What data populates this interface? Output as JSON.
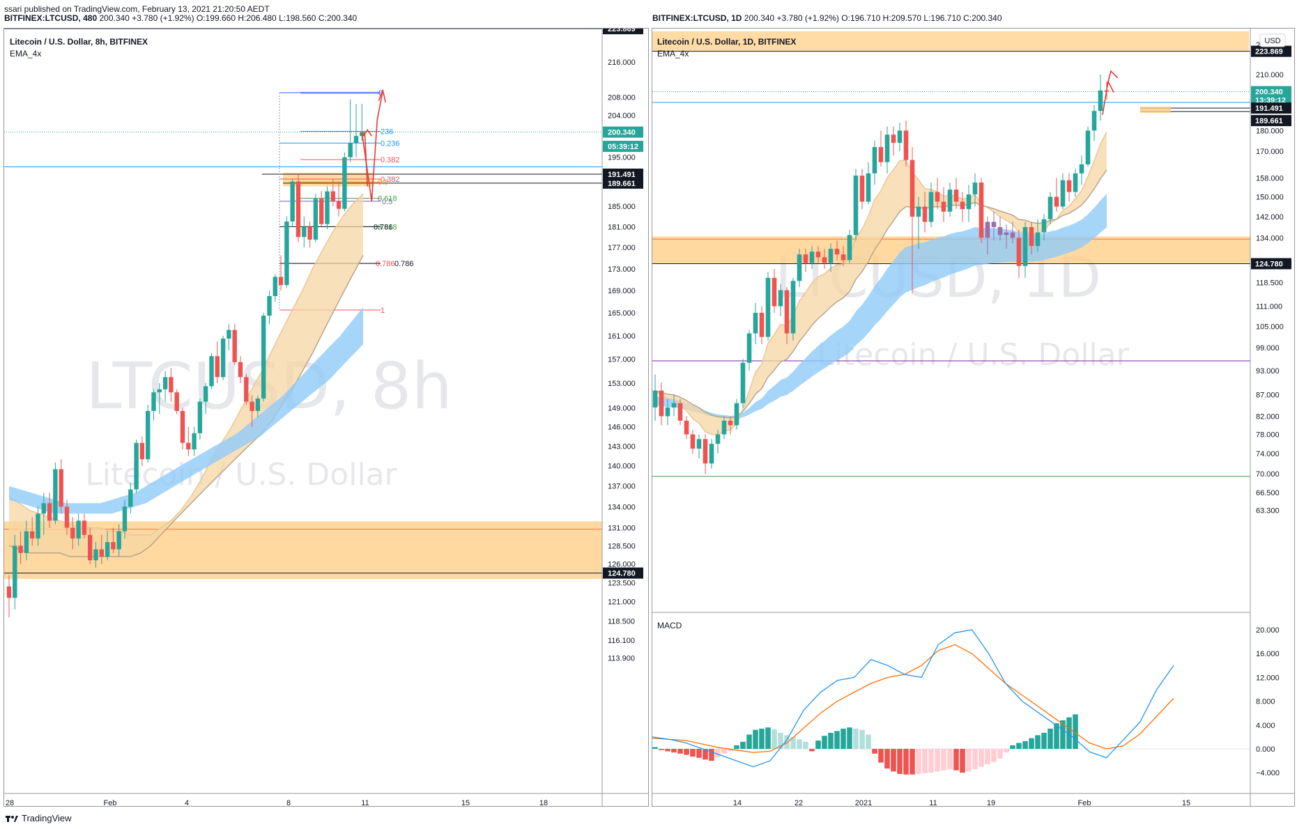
{
  "publish_line": "ssari published on TradingView.com, February 13, 2021 21:20:50 AEDT",
  "footer": {
    "brand": "TradingView"
  },
  "colors": {
    "up": "#26a69a",
    "down": "#ef5350",
    "zone": "#ffcc80",
    "cloud": "#90caf9",
    "ema_band": "#f5d5a4",
    "macd": "#2196f3",
    "signal": "#ff6d00",
    "hist_up_strong": "#26a69a",
    "hist_up_weak": "#b2dfdb",
    "hist_down_strong": "#ef5350",
    "hist_down_weak": "#ffcdd2"
  },
  "left": {
    "quote": {
      "symbol": "BITFINEX:LTCUSD, 480",
      "last": "200.340",
      "change": "+3.780 (+1.92%)",
      "o": "O:199.660",
      "h": "H:206.480",
      "l": "L:198.560",
      "c": "C:200.340"
    },
    "legend_title": "Litecoin / U.S. Dollar, 8h, BITFINEX",
    "indicator": "EMA_4x",
    "watermark_symbol": "LTCUSD, 8h",
    "watermark_name": "Litecoin / U.S. Dollar",
    "price_ticks": [
      "216.000",
      "208.000",
      "204.000",
      "195.000",
      "185.000",
      "181.000",
      "177.000",
      "173.000",
      "169.000",
      "165.000",
      "161.000",
      "157.000",
      "153.000",
      "149.000",
      "146.000",
      "143.000",
      "140.000",
      "137.000",
      "134.000",
      "131.000",
      "128.500",
      "126.000",
      "123.500",
      "121.000",
      "118.500",
      "116.100",
      "113.900"
    ],
    "time_ticks": [
      "28",
      "Feb",
      "4",
      "8",
      "11",
      "15",
      "18"
    ],
    "price_labels": [
      {
        "text": "223.869",
        "kind": "level"
      },
      {
        "text": "200.340",
        "kind": "last"
      },
      {
        "text": "05:39:12",
        "kind": "countdown"
      },
      {
        "text": "191.491",
        "kind": "level"
      },
      {
        "text": "189.661",
        "kind": "level"
      },
      {
        "text": "124.780",
        "kind": "level"
      }
    ],
    "fib_labels": [
      "0",
      "236",
      "0.236",
      "0.382",
      "0.382",
      "0.5",
      "0.5",
      "0.618",
      "0.618",
      "0.786",
      "0.786",
      "0.786",
      "1"
    ]
  },
  "right": {
    "quote": {
      "symbol": "BITFINEX:LTCUSD, 1D",
      "last": "200.340",
      "change": "+3.780 (+1.92%)",
      "o": "O:196.710",
      "h": "H:209.570",
      "l": "L:196.710",
      "c": "C:200.340"
    },
    "legend_title": "Litecoin / U.S. Dollar, 1D, BITFINEX",
    "indicator": "EMA_4x",
    "currency": "USD",
    "watermark_symbol": "LTCUSD, 1D",
    "watermark_name": "Litecoin / U.S. Dollar",
    "price_ticks": [
      "230.000",
      "210.000",
      "190.000",
      "180.000",
      "170.000",
      "158.000",
      "150.000",
      "142.000",
      "134.000",
      "118.500",
      "111.000",
      "105.000",
      "99.000",
      "93.000",
      "87.000",
      "82.000",
      "78.000",
      "74.000",
      "70.000",
      "66.500",
      "63.300"
    ],
    "time_ticks": [
      "14",
      "22",
      "2021",
      "11",
      "19",
      "Feb",
      "15"
    ],
    "price_labels": [
      {
        "text": "223.869",
        "kind": "level"
      },
      {
        "text": "200.340",
        "kind": "last"
      },
      {
        "text": "13:39:12",
        "kind": "countdown"
      },
      {
        "text": "191.491",
        "kind": "level"
      },
      {
        "text": "189.661",
        "kind": "level"
      },
      {
        "text": "124.780",
        "kind": "level"
      }
    ],
    "macd_title": "MACD",
    "macd_ticks": [
      "20.000",
      "16.000",
      "12.000",
      "8.000",
      "4.000",
      "0.000",
      "−4.000"
    ]
  },
  "chart_data": [
    {
      "type": "candlestick",
      "title": "Litecoin / U.S. Dollar, 8h, BITFINEX",
      "x_ticks": [
        "28",
        "Feb",
        "4",
        "8",
        "11",
        "15",
        "18"
      ],
      "ylim": [
        113.9,
        223.9
      ],
      "y_scale": "log",
      "levels": [
        223.869,
        200.34,
        191.491,
        189.661,
        124.78
      ],
      "support_zone": [
        124.0,
        131.9
      ],
      "resistance_zone": [
        189.661,
        191.491
      ],
      "ohlc": [
        [
          123.0,
          124.5,
          119.0,
          121.5
        ],
        [
          121.5,
          130.0,
          120.0,
          128.5
        ],
        [
          128.5,
          130.5,
          126.0,
          127.5
        ],
        [
          127.5,
          132.0,
          126.5,
          130.5
        ],
        [
          130.5,
          132.5,
          128.5,
          129.5
        ],
        [
          129.5,
          134.0,
          128.5,
          133.0
        ],
        [
          133.0,
          136.0,
          130.0,
          134.5
        ],
        [
          134.5,
          136.0,
          131.0,
          132.0
        ],
        [
          132.0,
          140.5,
          131.5,
          139.5
        ],
        [
          139.5,
          141.0,
          133.0,
          134.0
        ],
        [
          134.0,
          135.0,
          130.0,
          131.0
        ],
        [
          131.0,
          132.5,
          128.0,
          129.5
        ],
        [
          129.5,
          133.0,
          128.5,
          132.0
        ],
        [
          132.0,
          133.0,
          129.5,
          130.0
        ],
        [
          130.0,
          131.0,
          126.0,
          126.5
        ],
        [
          126.5,
          129.0,
          125.5,
          128.0
        ],
        [
          128.0,
          130.0,
          126.0,
          127.0
        ],
        [
          127.0,
          130.5,
          126.5,
          129.0
        ],
        [
          129.0,
          131.0,
          127.5,
          128.0
        ],
        [
          128.0,
          131.5,
          127.0,
          130.5
        ],
        [
          130.5,
          135.0,
          129.5,
          134.0
        ],
        [
          134.0,
          137.5,
          133.0,
          136.5
        ],
        [
          136.5,
          144.0,
          136.0,
          143.5
        ],
        [
          143.5,
          144.5,
          140.0,
          141.0
        ],
        [
          141.0,
          149.5,
          140.5,
          148.5
        ],
        [
          148.5,
          152.0,
          147.0,
          151.5
        ],
        [
          151.5,
          153.0,
          148.0,
          152.0
        ],
        [
          152.0,
          155.0,
          150.0,
          154.0
        ],
        [
          154.0,
          155.5,
          150.0,
          151.5
        ],
        [
          151.5,
          152.0,
          148.0,
          148.5
        ],
        [
          148.5,
          149.0,
          142.5,
          143.5
        ],
        [
          143.5,
          146.0,
          141.5,
          142.5
        ],
        [
          142.5,
          146.0,
          141.5,
          145.0
        ],
        [
          145.0,
          150.5,
          144.0,
          150.0
        ],
        [
          150.0,
          153.0,
          148.0,
          152.5
        ],
        [
          152.5,
          158.0,
          152.0,
          157.5
        ],
        [
          157.5,
          160.0,
          153.0,
          154.0
        ],
        [
          154.0,
          161.0,
          153.5,
          160.5
        ],
        [
          160.5,
          163.0,
          158.5,
          162.0
        ],
        [
          162.0,
          163.0,
          156.0,
          156.5
        ],
        [
          156.5,
          157.5,
          153.0,
          154.0
        ],
        [
          154.0,
          154.5,
          149.5,
          150.0
        ],
        [
          150.0,
          151.0,
          146.0,
          148.5
        ],
        [
          148.5,
          151.0,
          147.5,
          150.5
        ],
        [
          150.5,
          165.0,
          150.0,
          164.5
        ],
        [
          164.5,
          169.0,
          163.0,
          168.0
        ],
        [
          168.0,
          172.0,
          167.0,
          171.5
        ],
        [
          171.5,
          175.5,
          169.0,
          170.0
        ],
        [
          170.0,
          183.0,
          169.5,
          182.0
        ],
        [
          182.0,
          190.5,
          181.0,
          190.0
        ],
        [
          190.0,
          191.5,
          178.0,
          179.0
        ],
        [
          179.0,
          183.0,
          177.0,
          181.0
        ],
        [
          181.0,
          182.0,
          177.0,
          178.5
        ],
        [
          178.5,
          187.5,
          178.0,
          186.5
        ],
        [
          186.5,
          188.0,
          181.0,
          181.5
        ],
        [
          181.5,
          189.0,
          180.5,
          188.0
        ],
        [
          188.0,
          190.5,
          185.0,
          186.0
        ],
        [
          186.0,
          190.0,
          183.0,
          184.5
        ],
        [
          184.5,
          196.0,
          184.0,
          195.0
        ],
        [
          195.0,
          207.5,
          194.0,
          198.0
        ],
        [
          198.0,
          206.5,
          195.0,
          199.5
        ],
        [
          199.5,
          206.5,
          198.5,
          200.34
        ]
      ],
      "ema_upper": [
        135.5,
        134.5,
        133.5,
        133.0,
        132.5,
        132.0,
        131.5,
        131.0,
        131.0,
        131.0,
        130.5,
        130.5,
        130.0,
        130.0,
        130.0,
        131.0,
        132.0,
        133.5,
        135.5,
        138.0,
        141.0,
        143.5,
        146.0,
        149.0,
        152.0,
        155.0,
        158.5,
        162.0,
        165.5,
        169.0,
        173.0,
        176.5,
        180.0,
        183.0,
        185.5,
        187.5
      ],
      "ema_lower": [
        128.5,
        128.0,
        127.5,
        127.5,
        127.5,
        127.5,
        127.0,
        127.0,
        127.0,
        127.0,
        127.0,
        127.0,
        127.0,
        127.5,
        128.5,
        130.0,
        131.5,
        133.0,
        134.5,
        136.0,
        137.5,
        139.0,
        140.5,
        142.0,
        143.5,
        145.0,
        147.0,
        149.5,
        152.0,
        155.0,
        158.0,
        161.5,
        165.0,
        168.5,
        172.0,
        175.5
      ],
      "cloud_upper": [
        137.0,
        136.5,
        136.0,
        135.5,
        135.0,
        134.5,
        134.5,
        134.5,
        134.5,
        135.0,
        135.5,
        136.0,
        137.0,
        138.0,
        139.0,
        140.0,
        141.0,
        142.0,
        143.0,
        144.0,
        145.0,
        146.5,
        148.0,
        149.5,
        151.0,
        153.0,
        155.0,
        157.0,
        159.0,
        161.0,
        163.5,
        166.0
      ],
      "cloud_lower": [
        135.0,
        134.5,
        134.0,
        133.5,
        133.0,
        133.0,
        133.0,
        133.0,
        133.0,
        133.0,
        133.5,
        134.0,
        134.5,
        135.5,
        136.5,
        137.5,
        138.5,
        139.5,
        140.5,
        141.5,
        142.5,
        143.5,
        144.5,
        146.0,
        147.5,
        149.0,
        150.5,
        152.0,
        153.5,
        155.5,
        157.5,
        159.5
      ]
    },
    {
      "type": "candlestick",
      "title": "Litecoin / U.S. Dollar, 1D, BITFINEX",
      "x_ticks": [
        "14",
        "22",
        "2021",
        "11",
        "19",
        "Feb",
        "15"
      ],
      "ylim": [
        63.3,
        230.0
      ],
      "y_scale": "log",
      "levels": [
        223.869,
        200.34,
        191.491,
        189.661,
        124.78,
        95.5,
        69.5
      ],
      "support_zone": [
        124.78,
        134.0
      ],
      "ohlc": [
        [
          84,
          92,
          81,
          88
        ],
        [
          88,
          90,
          80,
          82
        ],
        [
          82,
          86,
          80,
          84
        ],
        [
          84,
          87,
          82,
          85
        ],
        [
          85,
          86,
          80,
          81
        ],
        [
          81,
          82,
          77,
          78
        ],
        [
          78,
          79,
          74,
          75
        ],
        [
          75,
          78,
          73,
          77
        ],
        [
          77,
          78,
          70,
          72
        ],
        [
          72,
          77,
          71,
          76
        ],
        [
          76,
          79,
          74,
          78
        ],
        [
          78,
          82,
          77,
          81
        ],
        [
          81,
          82,
          78,
          80
        ],
        [
          80,
          86,
          79,
          85
        ],
        [
          85,
          96,
          84,
          95
        ],
        [
          95,
          104,
          93,
          103
        ],
        [
          103,
          112,
          100,
          109
        ],
        [
          109,
          111,
          100,
          102
        ],
        [
          102,
          122,
          101,
          120
        ],
        [
          120,
          123,
          109,
          111
        ],
        [
          111,
          118,
          108,
          116
        ],
        [
          116,
          117,
          100,
          103
        ],
        [
          103,
          120,
          101,
          119
        ],
        [
          119,
          130,
          117,
          128
        ],
        [
          128,
          130,
          122,
          125
        ],
        [
          125,
          131,
          123,
          129
        ],
        [
          129,
          131,
          125,
          127
        ],
        [
          127,
          130,
          123,
          125
        ],
        [
          125,
          132,
          122,
          130
        ],
        [
          130,
          133,
          126,
          128
        ],
        [
          128,
          131,
          124,
          126
        ],
        [
          126,
          137,
          125,
          135
        ],
        [
          135,
          162,
          133,
          159
        ],
        [
          159,
          162,
          145,
          148
        ],
        [
          148,
          165,
          147,
          160
        ],
        [
          160,
          175,
          155,
          172
        ],
        [
          172,
          180,
          163,
          165
        ],
        [
          165,
          182,
          160,
          178
        ],
        [
          178,
          182,
          168,
          174
        ],
        [
          174,
          184,
          170,
          180
        ],
        [
          180,
          185,
          163,
          166
        ],
        [
          166,
          172,
          115,
          142
        ],
        [
          142,
          150,
          130,
          146
        ],
        [
          146,
          152,
          136,
          140
        ],
        [
          140,
          156,
          138,
          152
        ],
        [
          152,
          158,
          145,
          148
        ],
        [
          148,
          154,
          140,
          144
        ],
        [
          144,
          156,
          142,
          153
        ],
        [
          153,
          158,
          145,
          148
        ],
        [
          148,
          152,
          140,
          145
        ],
        [
          145,
          155,
          140,
          151
        ],
        [
          151,
          160,
          146,
          156
        ],
        [
          156,
          158,
          132,
          134
        ],
        [
          134,
          142,
          128,
          140
        ],
        [
          140,
          144,
          133,
          138
        ],
        [
          138,
          142,
          133,
          135
        ],
        [
          135,
          139,
          130,
          136
        ],
        [
          136,
          140,
          132,
          134
        ],
        [
          134,
          137,
          120,
          124
        ],
        [
          124,
          140,
          120,
          138
        ],
        [
          138,
          140,
          128,
          131
        ],
        [
          131,
          141,
          129,
          136
        ],
        [
          136,
          143,
          133,
          141
        ],
        [
          141,
          152,
          139,
          150
        ],
        [
          150,
          158,
          144,
          146
        ],
        [
          146,
          160,
          145,
          157
        ],
        [
          157,
          160,
          148,
          152
        ],
        [
          152,
          162,
          150,
          160
        ],
        [
          160,
          168,
          155,
          164
        ],
        [
          164,
          182,
          163,
          180
        ],
        [
          180,
          193,
          175,
          190
        ],
        [
          190,
          210,
          185,
          201
        ],
        [
          201,
          206,
          196,
          200.34
        ]
      ],
      "macd": [
        2.0,
        1.6,
        1.0,
        0.0,
        -1.0,
        -2.0,
        -3.0,
        -2.0,
        1.5,
        6.5,
        9.5,
        11.5,
        12.0,
        15.0,
        14.0,
        12.5,
        12.0,
        17.5,
        19.5,
        20.0,
        16.0,
        11.0,
        8.0,
        6.0,
        4.0,
        2.0,
        -0.5,
        -1.5,
        1.5,
        4.5,
        10.0,
        14.0
      ],
      "signal": [
        1.8,
        1.6,
        1.4,
        0.8,
        0.2,
        -0.2,
        -0.6,
        -0.4,
        1.0,
        3.5,
        6.0,
        8.0,
        9.5,
        11.0,
        12.0,
        12.5,
        14.0,
        16.5,
        17.5,
        16.0,
        13.5,
        11.0,
        9.0,
        7.0,
        5.0,
        3.0,
        1.0,
        0.0,
        0.5,
        2.5,
        5.5,
        8.5
      ],
      "histogram": [
        0.3,
        -0.2,
        -0.4,
        -0.6,
        -0.8,
        -1.0,
        -1.3,
        -1.5,
        -1.8,
        -2.0,
        -1.4,
        -0.8,
        -0.4,
        0.6,
        1.2,
        2.4,
        3.2,
        3.4,
        3.6,
        3.3,
        2.7,
        2.3,
        2.0,
        1.6,
        1.2,
        -0.4,
        1.4,
        2.2,
        2.7,
        3.0,
        3.4,
        3.6,
        3.4,
        3.2,
        2.4,
        -0.8,
        -2.3,
        -3.3,
        -3.8,
        -4.2,
        -4.3,
        -4.3,
        -4.2,
        -4.1,
        -4.0,
        -3.8,
        -3.6,
        -3.4,
        -3.6,
        -4.0,
        -3.8,
        -3.4,
        -3.0,
        -2.6,
        -2.2,
        -1.6,
        -0.6,
        0.6,
        1.0,
        1.3,
        1.8,
        2.3,
        2.7,
        3.4,
        4.3,
        4.8,
        5.3,
        5.8
      ]
    }
  ]
}
